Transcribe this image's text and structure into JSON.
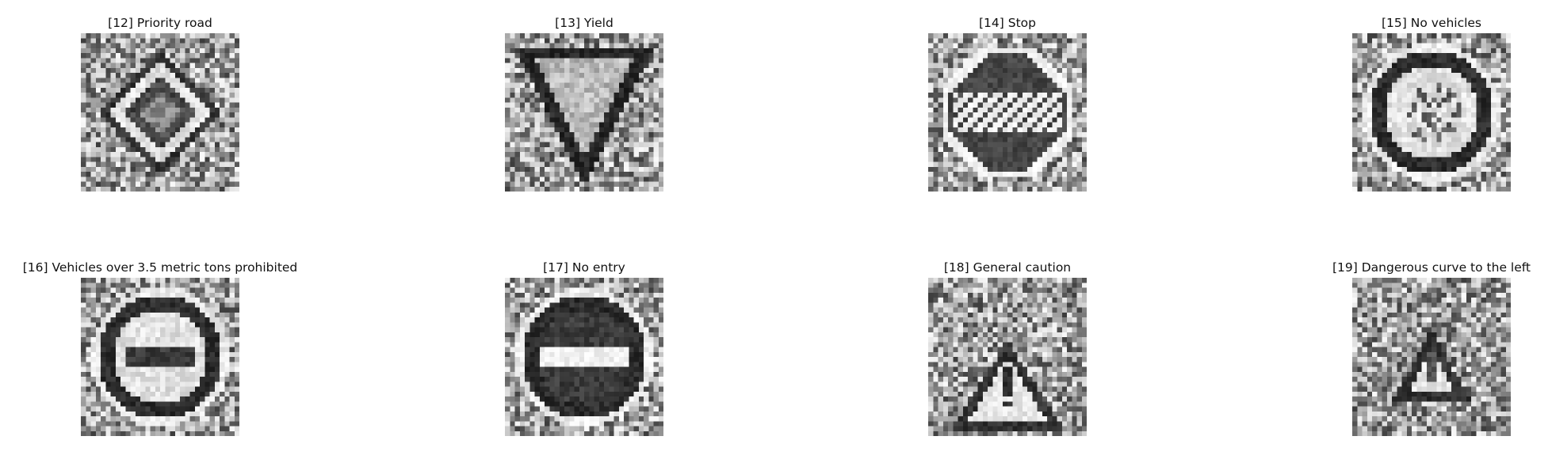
{
  "figure": {
    "panels": [
      {
        "title": "[12] Priority road",
        "shape": "diamond",
        "seed": 12
      },
      {
        "title": "[13] Yield",
        "shape": "triangle-down",
        "seed": 13
      },
      {
        "title": "[14] Stop",
        "shape": "octagon",
        "seed": 14,
        "glyph": "STOP"
      },
      {
        "title": "[15] No vehicles",
        "shape": "circle",
        "seed": 15
      },
      {
        "title": "[16] Vehicles over 3.5 metric tons prohibited",
        "shape": "circle-truck",
        "seed": 16
      },
      {
        "title": "[17] No entry",
        "shape": "circle-bar",
        "seed": 17
      },
      {
        "title": "[18] General caution",
        "shape": "triangle-up-exclaim",
        "seed": 18
      },
      {
        "title": "[19] Dangerous curve to the left",
        "shape": "triangle-up-small",
        "seed": 19
      }
    ]
  }
}
